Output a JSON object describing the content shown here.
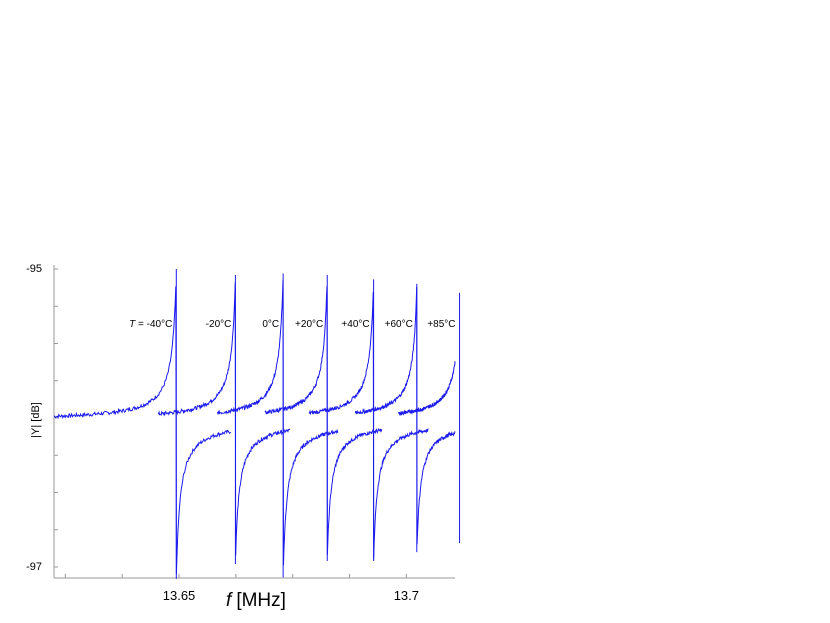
{
  "chart_data": {
    "type": "line",
    "title": "",
    "xlabel_var": "f",
    "xlabel_unit": "[MHz]",
    "ylabel": "|Y| [dB]",
    "xlim": [
      13.6225,
      13.7107
    ],
    "ylim": [
      -97.15,
      -94.98
    ],
    "x_ticks": [
      13.65,
      13.7
    ],
    "x_tick_labels": [
      "13.65",
      "13.7"
    ],
    "y_ticks": [
      -95,
      -97
    ],
    "y_tick_labels": [
      "-95",
      "-97"
    ],
    "grid": false,
    "legend": "none",
    "line_color": "#1a1aee",
    "baseline_db": -96.02,
    "series": [
      {
        "label_prefix": "T",
        "label": " = -40°C",
        "resonance_mhz": 13.6494,
        "peak_db": -95.0,
        "dip_db": -97.08
      },
      {
        "label": "-20°C",
        "resonance_mhz": 13.6624,
        "peak_db": -95.04,
        "dip_db": -96.98
      },
      {
        "label": "0°C",
        "resonance_mhz": 13.6729,
        "peak_db": -95.03,
        "dip_db": -97.07
      },
      {
        "label": "+20°C",
        "resonance_mhz": 13.6826,
        "peak_db": -95.04,
        "dip_db": -96.96
      },
      {
        "label": "+40°C",
        "resonance_mhz": 13.6928,
        "peak_db": -95.07,
        "dip_db": -96.96
      },
      {
        "label": "+60°C",
        "resonance_mhz": 13.7023,
        "peak_db": -95.1,
        "dip_db": -96.9
      },
      {
        "label": "+85°C",
        "resonance_mhz": 13.7117,
        "peak_db": -95.16,
        "dip_db": -96.84
      }
    ]
  }
}
